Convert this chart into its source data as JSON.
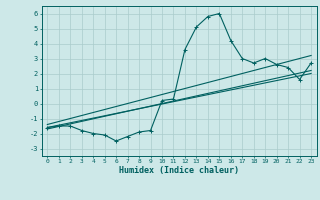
{
  "xlabel": "Humidex (Indice chaleur)",
  "bg_color": "#cde8e8",
  "grid_color": "#aacccc",
  "line_color": "#006060",
  "xlim": [
    -0.5,
    23.5
  ],
  "ylim": [
    -3.5,
    6.5
  ],
  "yticks": [
    -3,
    -2,
    -1,
    0,
    1,
    2,
    3,
    4,
    5,
    6
  ],
  "xticks": [
    0,
    1,
    2,
    3,
    4,
    5,
    6,
    7,
    8,
    9,
    10,
    11,
    12,
    13,
    14,
    15,
    16,
    17,
    18,
    19,
    20,
    21,
    22,
    23
  ],
  "line1_x": [
    0,
    1,
    2,
    3,
    4,
    5,
    6,
    7,
    8,
    9,
    10,
    11,
    12,
    13,
    14,
    15,
    16,
    17,
    18,
    19,
    20,
    21,
    22,
    23
  ],
  "line1_y": [
    -1.6,
    -1.5,
    -1.5,
    -1.8,
    -2.0,
    -2.1,
    -2.5,
    -2.2,
    -1.9,
    -1.8,
    0.2,
    0.3,
    3.6,
    5.1,
    5.8,
    6.0,
    4.2,
    3.0,
    2.7,
    3.0,
    2.6,
    2.4,
    1.6,
    2.7
  ],
  "line2_x": [
    0,
    23
  ],
  "line2_y": [
    -1.7,
    2.2
  ],
  "line3_x": [
    0,
    23
  ],
  "line3_y": [
    -1.4,
    3.2
  ],
  "line4_x": [
    0,
    23
  ],
  "line4_y": [
    -1.6,
    2.0
  ]
}
